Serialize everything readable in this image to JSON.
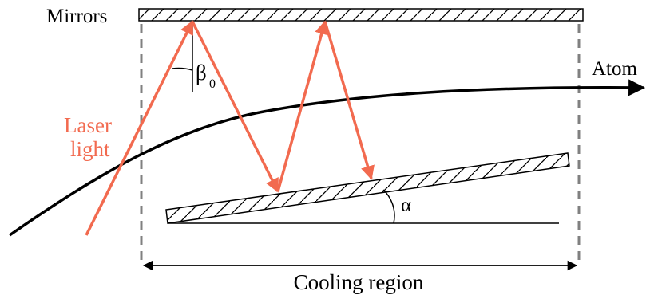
{
  "labels": {
    "mirrors": "Mirrors",
    "atom": "Atom",
    "laser_line1": "Laser",
    "laser_line2": "light",
    "beta": "β",
    "beta_sub": "0",
    "alpha": "α",
    "cooling_region": "Cooling region"
  },
  "colors": {
    "laser": "#f26a4f",
    "ink": "#000000",
    "dashed": "#808080"
  }
}
